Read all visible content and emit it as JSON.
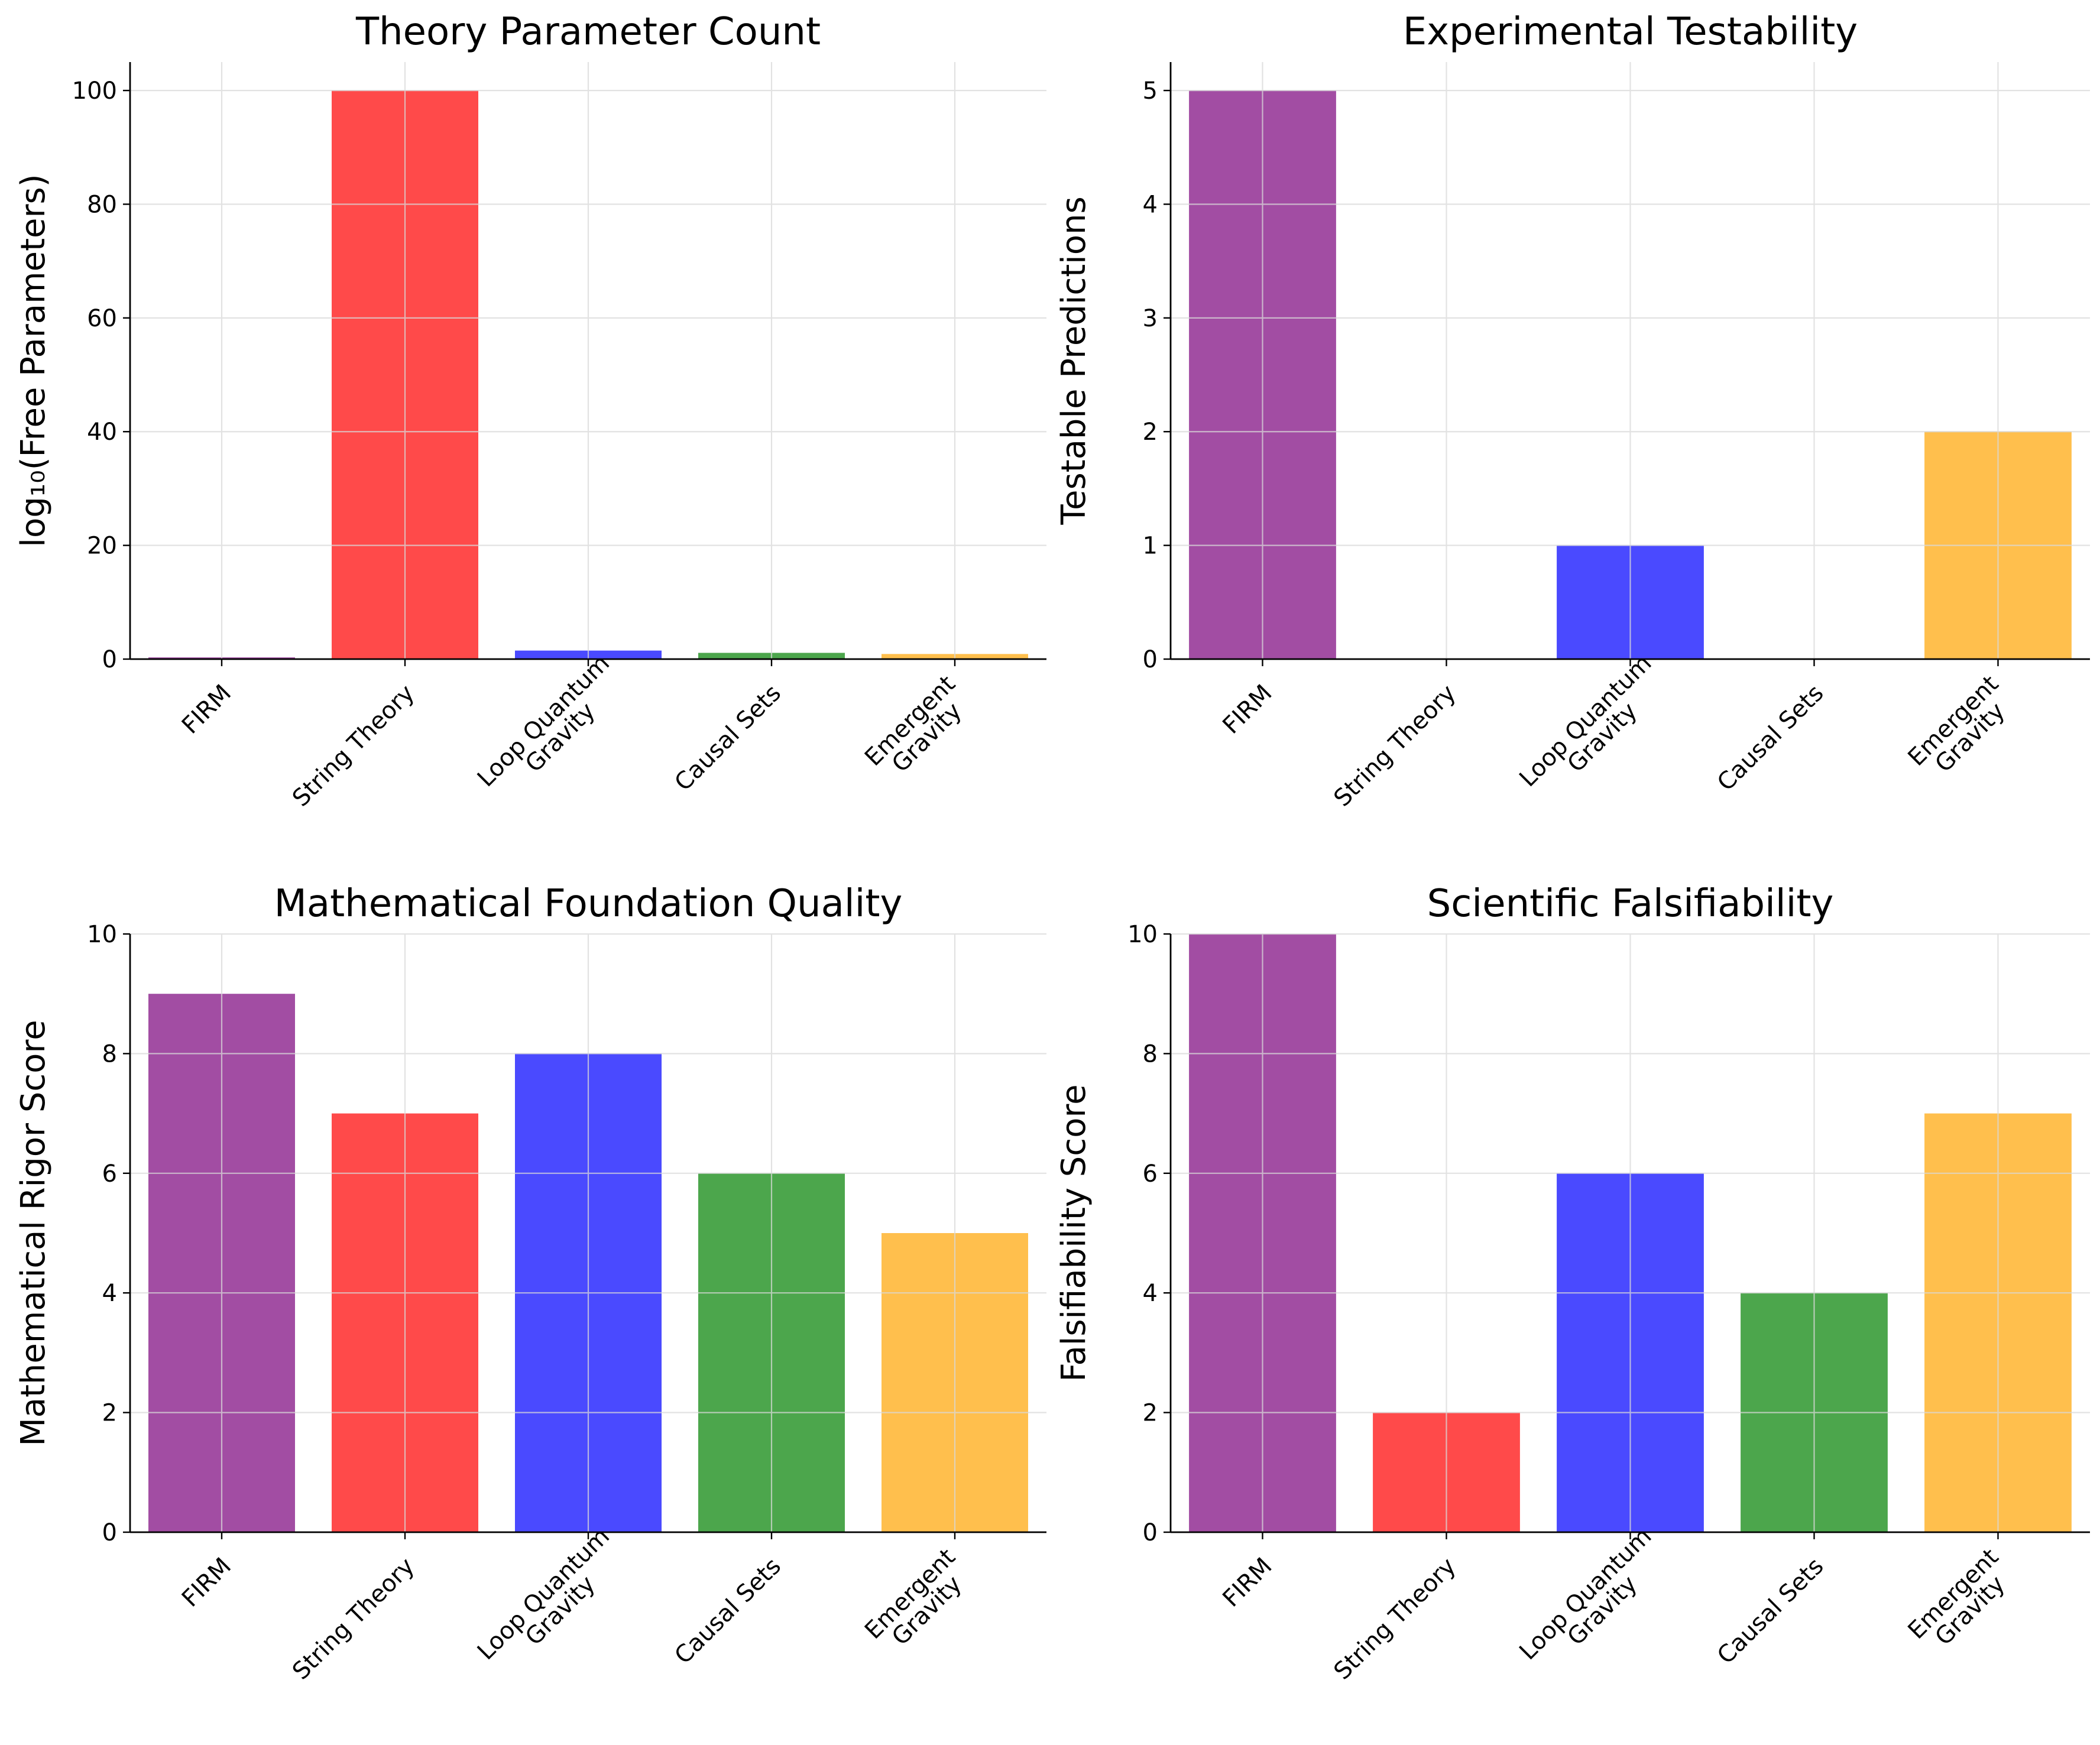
{
  "chart_data": [
    {
      "type": "bar",
      "title": "Theory Parameter Count",
      "xlabel": "",
      "ylabel": "log₁₀(Free Parameters)",
      "categories": [
        "FIRM",
        "String Theory",
        "Loop Quantum\nGravity",
        "Causal Sets",
        "Emergent\nGravity"
      ],
      "values": [
        0.3,
        100,
        1.5,
        1.1,
        0.9
      ],
      "ylim": [
        0,
        105
      ],
      "yticks": [
        0,
        20,
        40,
        60,
        80,
        100
      ],
      "colors": [
        "#a24da3",
        "#ff4a4a",
        "#4a4aff",
        "#4ca64c",
        "#ffbf4d"
      ],
      "grid": true,
      "legend": "none"
    },
    {
      "type": "bar",
      "title": "Experimental Testability",
      "xlabel": "",
      "ylabel": "Testable Predictions",
      "categories": [
        "FIRM",
        "String Theory",
        "Loop Quantum\nGravity",
        "Causal Sets",
        "Emergent\nGravity"
      ],
      "values": [
        5,
        0,
        1,
        0,
        2
      ],
      "ylim": [
        0,
        5.25
      ],
      "yticks": [
        0,
        1,
        2,
        3,
        4,
        5
      ],
      "colors": [
        "#a24da3",
        "#ff4a4a",
        "#4a4aff",
        "#4ca64c",
        "#ffbf4d"
      ],
      "grid": true,
      "legend": "none"
    },
    {
      "type": "bar",
      "title": "Mathematical Foundation Quality",
      "xlabel": "",
      "ylabel": "Mathematical Rigor Score",
      "categories": [
        "FIRM",
        "String Theory",
        "Loop Quantum\nGravity",
        "Causal Sets",
        "Emergent\nGravity"
      ],
      "values": [
        9,
        7,
        8,
        6,
        5
      ],
      "ylim": [
        0,
        10
      ],
      "yticks": [
        0,
        2,
        4,
        6,
        8,
        10
      ],
      "colors": [
        "#a24da3",
        "#ff4a4a",
        "#4a4aff",
        "#4ca64c",
        "#ffbf4d"
      ],
      "grid": true,
      "legend": "none"
    },
    {
      "type": "bar",
      "title": "Scientific Falsifiability",
      "xlabel": "",
      "ylabel": "Falsifiability Score",
      "categories": [
        "FIRM",
        "String Theory",
        "Loop Quantum\nGravity",
        "Causal Sets",
        "Emergent\nGravity"
      ],
      "values": [
        10,
        2,
        6,
        4,
        7
      ],
      "ylim": [
        0,
        10
      ],
      "yticks": [
        0,
        2,
        4,
        6,
        8,
        10
      ],
      "colors": [
        "#a24da3",
        "#ff4a4a",
        "#4a4aff",
        "#4ca64c",
        "#ffbf4d"
      ],
      "grid": true,
      "legend": "none"
    }
  ]
}
